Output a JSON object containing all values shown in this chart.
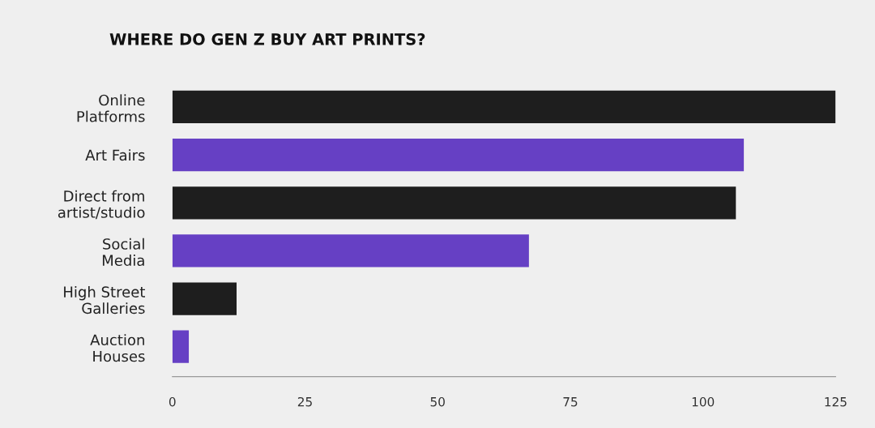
{
  "chart_data": {
    "type": "bar",
    "orientation": "horizontal",
    "title": "WHERE DO GEN Z BUY ART PRINTS?",
    "categories": [
      "Online\nPlatforms",
      "Art Fairs",
      "Direct from\nartist/studio",
      "Social\nMedia",
      "High Street\nGalleries",
      "Auction\nHouses"
    ],
    "values": [
      125,
      107.7,
      106.2,
      67.2,
      12.1,
      3.1
    ],
    "colors": [
      "#1e1e1e",
      "#6640c4",
      "#1e1e1e",
      "#6640c4",
      "#1e1e1e",
      "#6640c4"
    ],
    "xlim": [
      0,
      125
    ],
    "xticks": [
      0,
      25,
      50,
      75,
      100,
      125
    ],
    "grid": false,
    "legend": false
  }
}
